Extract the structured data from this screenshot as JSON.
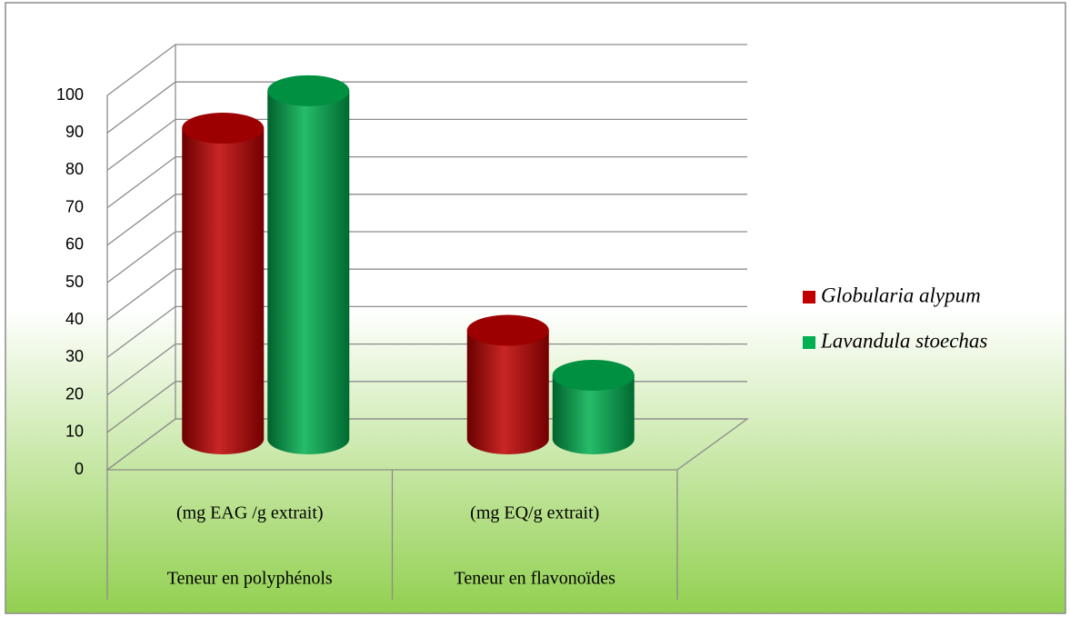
{
  "chart_data": {
    "type": "bar3d",
    "categories": [
      "Teneur en polyphénols",
      "Teneur en flavonoïdes"
    ],
    "category_units": [
      "(mg EAG /g extrait)",
      "(mg EQ/g extrait)"
    ],
    "series": [
      {
        "name": "Globularia alypum",
        "color": "#c00000",
        "values": [
          83,
          29
        ]
      },
      {
        "name": "Lavandula stoechas",
        "color": "#00b050",
        "values": [
          93,
          17
        ]
      }
    ],
    "ylim": [
      0,
      100
    ],
    "yticks": [
      0,
      10,
      20,
      30,
      40,
      50,
      60,
      70,
      80,
      90,
      100
    ],
    "grid": true,
    "legend": "right"
  }
}
